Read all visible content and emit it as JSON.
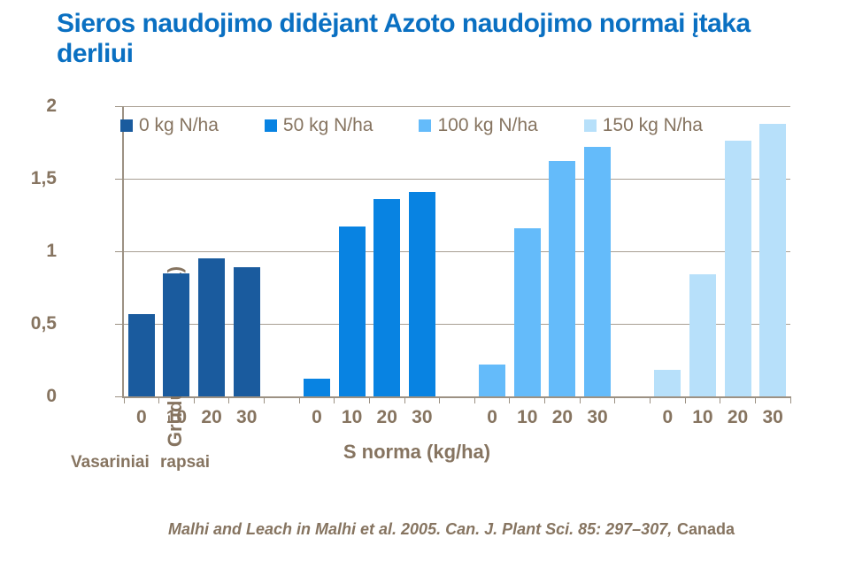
{
  "title": "Sieros naudojimo didėjant Azoto naudojimo normai įtaka derliui",
  "footnotes": {
    "crop_label": "Vasariniai rapsai",
    "citation_italic": "Malhi and Leach in Malhi et al. 2005. Can. J. Plant Sci. 85: 297–307,",
    "citation_country": "Canada"
  },
  "colors": {
    "title_blue": "#0a70c2",
    "text_brown": "#867460",
    "gridline": "#a89e92",
    "axis": "#9c9183"
  },
  "chart_data": {
    "type": "bar",
    "title": "Sieros naudojimo didėjant Azoto naudojimo normai įtaka derliui",
    "xlabel": "S norma (kg/ha)",
    "ylabel": "Grūdų derlius (t/ha)",
    "ylim": [
      0,
      2
    ],
    "grid": true,
    "legend_position": "top-inside",
    "yticks": [
      {
        "label": "0",
        "value": 0
      },
      {
        "label": "0,5",
        "value": 0.5
      },
      {
        "label": "1",
        "value": 1
      },
      {
        "label": "1,5",
        "value": 1.5
      },
      {
        "label": "2",
        "value": 2
      }
    ],
    "categories": [
      "0",
      "10",
      "20",
      "30"
    ],
    "series": [
      {
        "name": "0 kg N/ha",
        "color": "#1a5b9e",
        "values": [
          0.57,
          0.85,
          0.95,
          0.89
        ]
      },
      {
        "name": "50 kg N/ha",
        "color": "#0883e2",
        "values": [
          0.12,
          1.17,
          1.36,
          1.41
        ]
      },
      {
        "name": "100 kg N/ha",
        "color": "#64bbfa",
        "values": [
          0.22,
          1.16,
          1.62,
          1.72
        ]
      },
      {
        "name": "150 kg N/ha",
        "color": "#b7e0fa",
        "values": [
          0.18,
          0.84,
          1.76,
          1.88
        ]
      }
    ]
  }
}
